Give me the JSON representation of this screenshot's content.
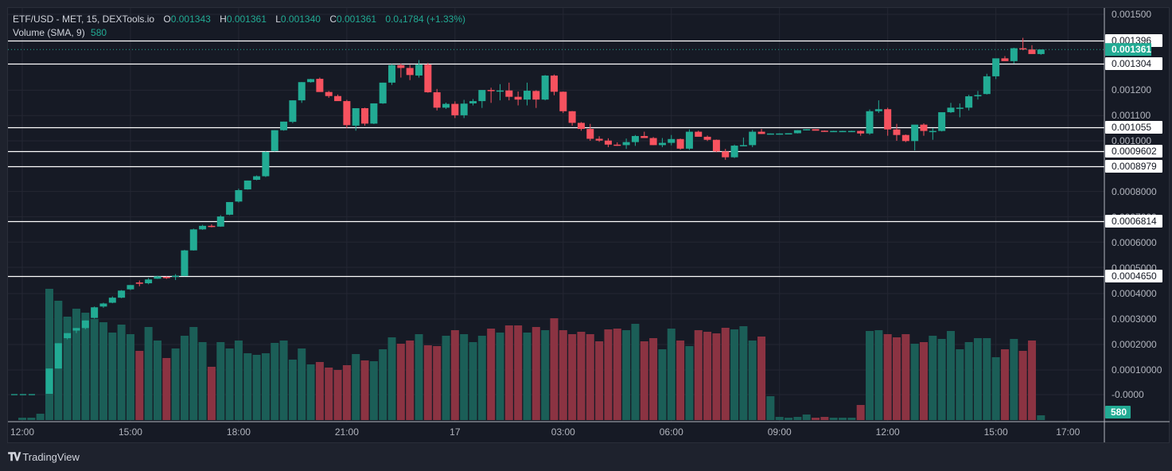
{
  "legend": {
    "symbol": "ETF/USD - MET, 15, DEXTools.io",
    "open_label": "O",
    "open": "0.001343",
    "high_label": "H",
    "high": "0.001361",
    "low_label": "L",
    "low": "0.001340",
    "close_label": "C",
    "close": "0.001361",
    "change": "0.0₄1784 (+1.33%)",
    "volume_label": "Volume (SMA, 9)",
    "volume_value": "580"
  },
  "colors": {
    "background": "#161a25",
    "outer": "#1e222d",
    "grid": "#242733",
    "up": "#22ab94",
    "down": "#f7525f",
    "vol_up": "#1b5e57",
    "vol_down": "#8b3342",
    "axis_text": "#b2b5be",
    "hline": "#ffffff"
  },
  "footer": {
    "brand": "TradingView"
  },
  "chart_data": {
    "type": "candlestick",
    "title": "ETF/USD - MET, 15, DEXTools.io",
    "interval": "15m",
    "y_axis": {
      "ticks": [
        "0.001500",
        "0.001200",
        "0.001100",
        "0.001000",
        "0.0008000",
        "0.0007000",
        "0.0006000",
        "0.0005000",
        "0.0004000",
        "0.0003000",
        "0.0002000",
        "0.00010000",
        "-0.0000"
      ],
      "tick_values": [
        0.0015,
        0.0012,
        0.0011,
        0.001,
        0.0008,
        0.0007,
        0.0006,
        0.0005,
        0.0004,
        0.0003,
        0.0002,
        0.0001,
        0.0
      ]
    },
    "x_axis": {
      "labels": [
        "12:00",
        "15:00",
        "18:00",
        "21:00",
        "17",
        "03:00",
        "06:00",
        "09:00",
        "12:00",
        "15:00",
        "17:00"
      ],
      "label_candle_index": [
        0,
        12,
        24,
        36,
        48,
        60,
        72,
        84,
        96,
        108,
        116
      ]
    },
    "last_price": {
      "value": "0.001361",
      "color": "#22ab94"
    },
    "volume_last": {
      "value": "580",
      "color": "#22ab94"
    },
    "horizontal_lines": [
      {
        "label": "0.001396",
        "value": 0.001396
      },
      {
        "label": "0.001304",
        "value": 0.001304
      },
      {
        "label": "0.001055",
        "value": 0.001055
      },
      {
        "label": "0.0009602",
        "value": 0.0009602
      },
      {
        "label": "0.0008979",
        "value": 0.0008979
      },
      {
        "label": "0.0006814",
        "value": 0.0006814
      },
      {
        "label": "0.0004650",
        "value": 0.000465
      }
    ],
    "candles": [
      [
        0.0,
        0.0,
        0.0,
        0.0,
        3
      ],
      [
        0.0,
        0.0,
        0.0,
        0.0,
        3
      ],
      [
        0.0,
        0.0,
        0.0,
        0.0,
        8
      ],
      [
        0.0,
        0.0001,
        0.0,
        0.0001,
        165
      ],
      [
        0.0001,
        0.0002,
        0.0001,
        0.0002,
        150
      ],
      [
        0.00022,
        0.00024,
        0.000215,
        0.00024,
        130
      ],
      [
        0.00025,
        0.00026,
        0.00024,
        0.00026,
        140
      ],
      [
        0.00026,
        0.00029,
        0.000255,
        0.00029,
        135
      ],
      [
        0.0003,
        0.000345,
        0.000297,
        0.000342,
        127
      ],
      [
        0.000345,
        0.00036,
        0.00034,
        0.000357,
        123
      ],
      [
        0.00036,
        0.000385,
        0.000358,
        0.00038,
        110
      ],
      [
        0.00038,
        0.00041,
        0.000378,
        0.000408,
        120
      ],
      [
        0.000413,
        0.00043,
        0.00041,
        0.00043,
        108
      ],
      [
        0.00044,
        0.000448,
        0.000425,
        0.000435,
        87
      ],
      [
        0.000437,
        0.000458,
        0.000433,
        0.000452,
        117
      ],
      [
        0.000455,
        0.000467,
        0.000454,
        0.000464,
        100
      ],
      [
        0.000462,
        0.000464,
        0.000454,
        0.000461,
        78
      ],
      [
        0.000463,
        0.000473,
        0.00045,
        0.000467,
        90
      ],
      [
        0.000466,
        0.000569,
        0.000465,
        0.000567,
        106
      ],
      [
        0.000567,
        0.000653,
        0.000566,
        0.00065,
        117
      ],
      [
        0.00065,
        0.000668,
        0.000648,
        0.000664,
        98
      ],
      [
        0.000664,
        0.00067,
        0.000658,
        0.000662,
        67
      ],
      [
        0.000661,
        0.000706,
        0.00066,
        0.000701,
        98
      ],
      [
        0.000708,
        0.000758,
        0.000706,
        0.000758,
        90
      ],
      [
        0.00076,
        0.000811,
        0.000756,
        0.000805,
        100
      ],
      [
        0.000808,
        0.000843,
        0.000807,
        0.000843,
        84
      ],
      [
        0.000846,
        0.000863,
        0.000844,
        0.00086,
        82
      ],
      [
        0.00086,
        0.000958,
        0.000857,
        0.000956,
        84
      ],
      [
        0.00096,
        0.001042,
        0.000958,
        0.001042,
        97
      ],
      [
        0.001042,
        0.001076,
        0.00104,
        0.001076,
        100
      ],
      [
        0.001075,
        0.00116,
        0.00107,
        0.00116,
        76
      ],
      [
        0.00116,
        0.001232,
        0.00115,
        0.001232,
        90
      ],
      [
        0.001232,
        0.001245,
        0.00123,
        0.001244,
        70
      ],
      [
        0.001245,
        0.00125,
        0.00121,
        0.001193,
        73
      ],
      [
        0.001193,
        0.001197,
        0.00117,
        0.001177,
        66
      ],
      [
        0.001177,
        0.001183,
        0.00117,
        0.001157,
        63
      ],
      [
        0.001157,
        0.001162,
        0.00105,
        0.001062,
        69
      ],
      [
        0.00106,
        0.001129,
        0.00104,
        0.001129,
        83
      ],
      [
        0.001129,
        0.001131,
        0.00106,
        0.001068,
        75
      ],
      [
        0.001068,
        0.001148,
        0.001066,
        0.001148,
        74
      ],
      [
        0.001148,
        0.00123,
        0.001146,
        0.00123,
        89
      ],
      [
        0.00123,
        0.001303,
        0.001221,
        0.001299,
        104
      ],
      [
        0.001299,
        0.001305,
        0.00125,
        0.001288,
        96
      ],
      [
        0.001288,
        0.0013,
        0.00124,
        0.00126,
        100
      ],
      [
        0.001258,
        0.001319,
        0.00125,
        0.001301,
        108
      ],
      [
        0.001301,
        0.001308,
        0.00119,
        0.001192,
        94
      ],
      [
        0.001192,
        0.001205,
        0.00112,
        0.001131,
        93
      ],
      [
        0.001131,
        0.001151,
        0.001126,
        0.001146,
        106
      ],
      [
        0.001146,
        0.001156,
        0.00109,
        0.001101,
        113
      ],
      [
        0.001101,
        0.001162,
        0.00109,
        0.001147,
        108
      ],
      [
        0.001148,
        0.001165,
        0.00114,
        0.001157,
        98
      ],
      [
        0.001157,
        0.0012,
        0.00113,
        0.001201,
        106
      ],
      [
        0.001201,
        0.00121,
        0.00115,
        0.001199,
        115
      ],
      [
        0.001199,
        0.001224,
        0.00116,
        0.001199,
        110
      ],
      [
        0.001199,
        0.00123,
        0.00116,
        0.001174,
        119
      ],
      [
        0.001174,
        0.001195,
        0.00114,
        0.001163,
        119
      ],
      [
        0.001163,
        0.00123,
        0.00114,
        0.001198,
        110
      ],
      [
        0.001197,
        0.0012,
        0.00113,
        0.001163,
        117
      ],
      [
        0.001163,
        0.00126,
        0.00116,
        0.001258,
        113
      ],
      [
        0.001258,
        0.001262,
        0.00118,
        0.001194,
        128
      ],
      [
        0.001194,
        0.001195,
        0.00111,
        0.001117,
        113
      ],
      [
        0.001117,
        0.001118,
        0.00106,
        0.001071,
        108
      ],
      [
        0.001071,
        0.001074,
        0.00104,
        0.001047,
        111
      ],
      [
        0.001047,
        0.001067,
        0.001,
        0.001008,
        108
      ],
      [
        0.001008,
        0.001018,
        0.000996,
        0.001001,
        99
      ],
      [
        0.001001,
        0.00101,
        0.000975,
        0.000985,
        114
      ],
      [
        0.000985,
        0.000994,
        0.00098,
        0.000983,
        115
      ],
      [
        0.000983,
        0.001009,
        0.000968,
        0.000995,
        113
      ],
      [
        0.000995,
        0.001023,
        0.00098,
        0.001019,
        121
      ],
      [
        0.001019,
        0.001036,
        0.001011,
        0.001011,
        99
      ],
      [
        0.001011,
        0.001015,
        0.000983,
        0.000983,
        103
      ],
      [
        0.000983,
        0.001011,
        0.000975,
        0.000992,
        89
      ],
      [
        0.000992,
        0.001023,
        0.000982,
        0.001007,
        115
      ],
      [
        0.001007,
        0.001009,
        0.000965,
        0.000969,
        100
      ],
      [
        0.000969,
        0.001045,
        0.000964,
        0.001036,
        93
      ],
      [
        0.001036,
        0.00104,
        0.001018,
        0.001016,
        113
      ],
      [
        0.001016,
        0.001021,
        0.000999,
        0.001004,
        111
      ],
      [
        0.001004,
        0.001005,
        0.000955,
        0.000958,
        109
      ],
      [
        0.000958,
        0.000968,
        0.000925,
        0.000935,
        116
      ],
      [
        0.000935,
        0.000985,
        0.000932,
        0.000981,
        114
      ],
      [
        0.000981,
        0.001013,
        0.00098,
        0.000983,
        118
      ],
      [
        0.000983,
        0.001043,
        0.000975,
        0.001036,
        100
      ],
      [
        0.001036,
        0.001047,
        0.001027,
        0.001027,
        105
      ],
      [
        0.001028,
        0.001029,
        0.001028,
        0.001029,
        30
      ],
      [
        0.001029,
        0.00103,
        0.001029,
        0.001029,
        4
      ],
      [
        0.001029,
        0.00103,
        0.001029,
        0.00103,
        3
      ],
      [
        0.00103,
        0.001042,
        0.001029,
        0.001042,
        4
      ],
      [
        0.001042,
        0.001046,
        0.001041,
        0.001046,
        7
      ],
      [
        0.001046,
        0.001046,
        0.001042,
        0.00104,
        3
      ],
      [
        0.00104,
        0.001041,
        0.001039,
        0.001039,
        4
      ],
      [
        0.001039,
        0.00104,
        0.001039,
        0.001039,
        3
      ],
      [
        0.001039,
        0.00104,
        0.001039,
        0.001039,
        3
      ],
      [
        0.001039,
        0.00104,
        0.001039,
        0.001039,
        3
      ],
      [
        0.001039,
        0.001041,
        0.00102,
        0.001029,
        19
      ],
      [
        0.001029,
        0.001124,
        0.001024,
        0.001117,
        112
      ],
      [
        0.001117,
        0.00116,
        0.00111,
        0.001125,
        113
      ],
      [
        0.001125,
        0.001131,
        0.00102,
        0.001045,
        108
      ],
      [
        0.001045,
        0.001067,
        0.001,
        0.001023,
        104
      ],
      [
        0.001023,
        0.001025,
        0.000995,
        0.000999,
        108
      ],
      [
        0.000999,
        0.00104,
        0.000962,
        0.001064,
        96
      ],
      [
        0.001064,
        0.001069,
        0.00102,
        0.001039,
        98
      ],
      [
        0.001039,
        0.00105,
        0.001004,
        0.001039,
        106
      ],
      [
        0.001039,
        0.0011,
        0.001037,
        0.001113,
        102
      ],
      [
        0.001113,
        0.00115,
        0.00111,
        0.001131,
        112
      ],
      [
        0.001131,
        0.001148,
        0.001093,
        0.001131,
        89
      ],
      [
        0.001131,
        0.001182,
        0.00112,
        0.001176,
        98
      ],
      [
        0.001176,
        0.001197,
        0.001163,
        0.001181,
        103
      ],
      [
        0.001185,
        0.001265,
        0.001183,
        0.001255,
        103
      ],
      [
        0.001255,
        0.001311,
        0.001244,
        0.001326,
        79
      ],
      [
        0.001326,
        0.001335,
        0.00132,
        0.001315,
        89
      ],
      [
        0.001315,
        0.001368,
        0.001305,
        0.001366,
        102
      ],
      [
        0.001366,
        0.001407,
        0.001358,
        0.001361,
        87
      ],
      [
        0.001361,
        0.001378,
        0.001348,
        0.001343,
        100
      ],
      [
        0.001343,
        0.001361,
        0.00134,
        0.001361,
        6
      ]
    ]
  }
}
